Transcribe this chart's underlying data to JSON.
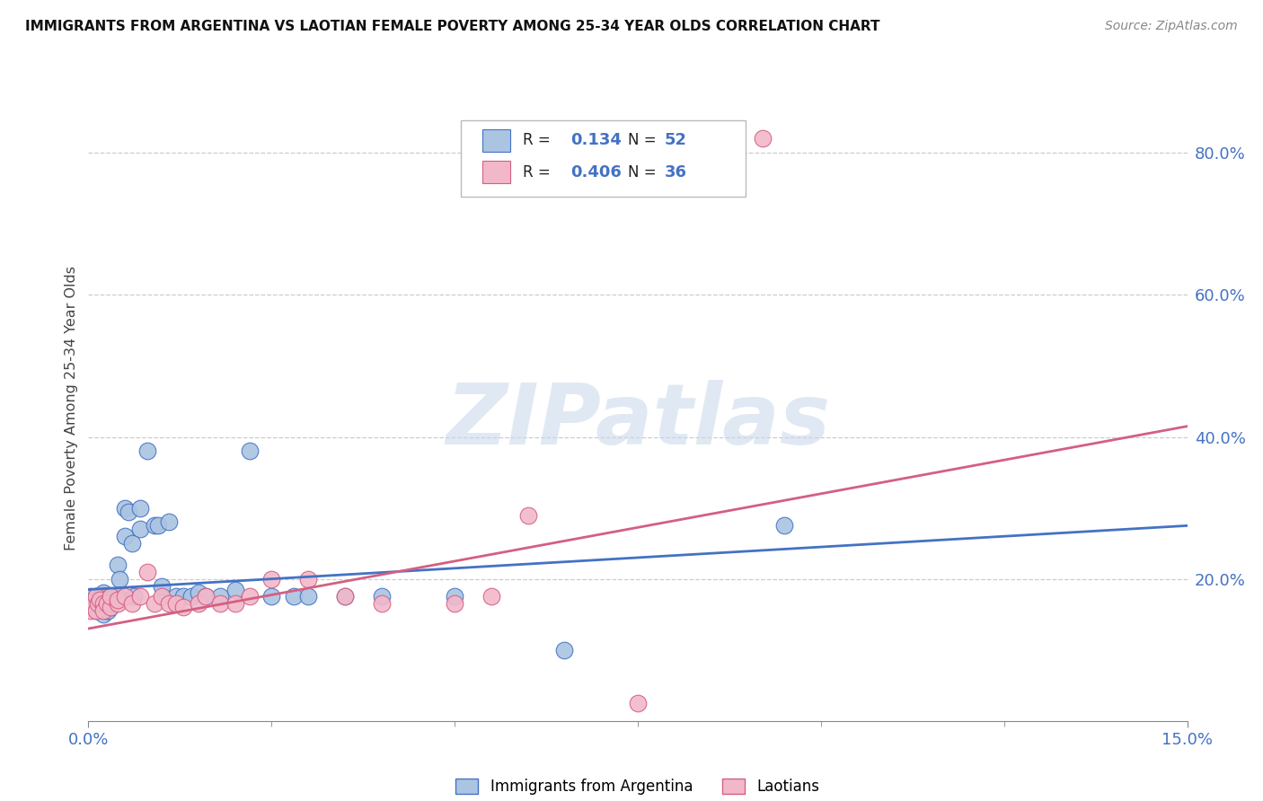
{
  "title": "IMMIGRANTS FROM ARGENTINA VS LAOTIAN FEMALE POVERTY AMONG 25-34 YEAR OLDS CORRELATION CHART",
  "source": "Source: ZipAtlas.com",
  "ylabel": "Female Poverty Among 25-34 Year Olds",
  "xlim": [
    0.0,
    0.15
  ],
  "ylim": [
    0.0,
    0.88
  ],
  "ytick_vals": [
    0.2,
    0.4,
    0.6,
    0.8
  ],
  "ytick_labels": [
    "20.0%",
    "40.0%",
    "60.0%",
    "80.0%"
  ],
  "xtick_vals": [
    0.0,
    0.15
  ],
  "xtick_labels": [
    "0.0%",
    "15.0%"
  ],
  "legend_label1": "Immigrants from Argentina",
  "legend_label2": "Laotians",
  "color_argentina": "#aac4e2",
  "color_laotian": "#f2b8ca",
  "line_color_argentina": "#4472c4",
  "line_color_laotian": "#d45f82",
  "text_color_blue": "#4472c4",
  "axis_color": "#888888",
  "grid_color": "#cccccc",
  "watermark_color": "#c8d8ea",
  "argentina_x": [
    0.0003,
    0.0005,
    0.0007,
    0.001,
    0.001,
    0.0012,
    0.0013,
    0.0015,
    0.0015,
    0.0018,
    0.002,
    0.002,
    0.002,
    0.0022,
    0.0025,
    0.0027,
    0.003,
    0.003,
    0.0032,
    0.0033,
    0.0035,
    0.004,
    0.004,
    0.0042,
    0.005,
    0.005,
    0.0055,
    0.006,
    0.0062,
    0.007,
    0.007,
    0.008,
    0.009,
    0.0095,
    0.01,
    0.011,
    0.012,
    0.013,
    0.014,
    0.015,
    0.016,
    0.018,
    0.02,
    0.022,
    0.025,
    0.028,
    0.03,
    0.035,
    0.04,
    0.05,
    0.065,
    0.095
  ],
  "argentina_y": [
    0.175,
    0.165,
    0.16,
    0.175,
    0.155,
    0.17,
    0.155,
    0.16,
    0.165,
    0.175,
    0.17,
    0.15,
    0.18,
    0.175,
    0.155,
    0.155,
    0.175,
    0.16,
    0.165,
    0.175,
    0.175,
    0.22,
    0.175,
    0.2,
    0.26,
    0.3,
    0.295,
    0.25,
    0.175,
    0.27,
    0.3,
    0.38,
    0.275,
    0.275,
    0.19,
    0.28,
    0.175,
    0.175,
    0.175,
    0.18,
    0.175,
    0.175,
    0.185,
    0.38,
    0.175,
    0.175,
    0.175,
    0.175,
    0.175,
    0.175,
    0.1,
    0.275
  ],
  "laotian_x": [
    0.0003,
    0.0005,
    0.001,
    0.001,
    0.0013,
    0.0015,
    0.002,
    0.002,
    0.0025,
    0.003,
    0.003,
    0.004,
    0.004,
    0.005,
    0.006,
    0.007,
    0.008,
    0.009,
    0.01,
    0.011,
    0.012,
    0.013,
    0.015,
    0.016,
    0.018,
    0.02,
    0.022,
    0.025,
    0.03,
    0.035,
    0.04,
    0.05,
    0.055,
    0.06,
    0.075,
    0.092
  ],
  "laotian_y": [
    0.155,
    0.165,
    0.155,
    0.175,
    0.165,
    0.17,
    0.165,
    0.155,
    0.165,
    0.16,
    0.175,
    0.165,
    0.17,
    0.175,
    0.165,
    0.175,
    0.21,
    0.165,
    0.175,
    0.165,
    0.165,
    0.16,
    0.165,
    0.175,
    0.165,
    0.165,
    0.175,
    0.2,
    0.2,
    0.175,
    0.165,
    0.165,
    0.175,
    0.29,
    0.025,
    0.82
  ],
  "argentina_line_x": [
    0.0,
    0.15
  ],
  "argentina_line_y": [
    0.185,
    0.275
  ],
  "laotian_line_x": [
    0.0,
    0.15
  ],
  "laotian_line_y": [
    0.13,
    0.415
  ],
  "watermark": "ZIPatlas",
  "background_color": "#ffffff"
}
